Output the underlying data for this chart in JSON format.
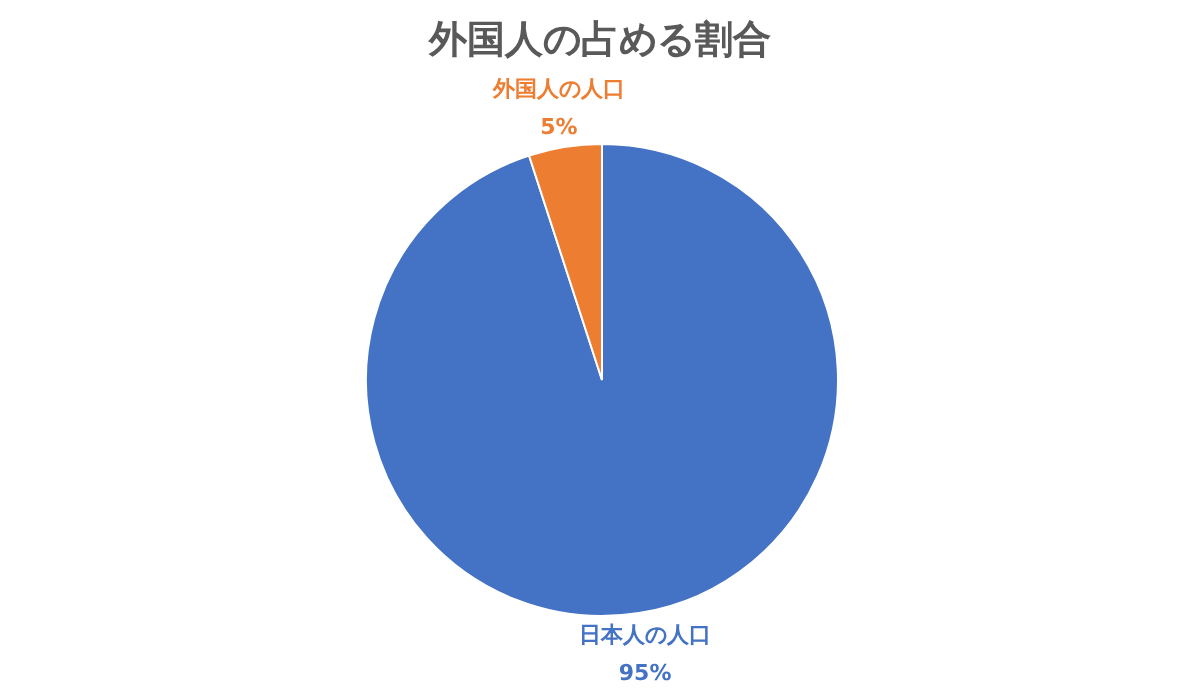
{
  "chart_data": {
    "type": "pie",
    "title": "外国人の占める割合",
    "categories": [
      "日本人の人口",
      "外国人の人口"
    ],
    "values": [
      95,
      5
    ],
    "value_labels": [
      "95%",
      "5%"
    ],
    "colors": [
      "#4472c4",
      "#ed7d31"
    ],
    "legend": false
  }
}
